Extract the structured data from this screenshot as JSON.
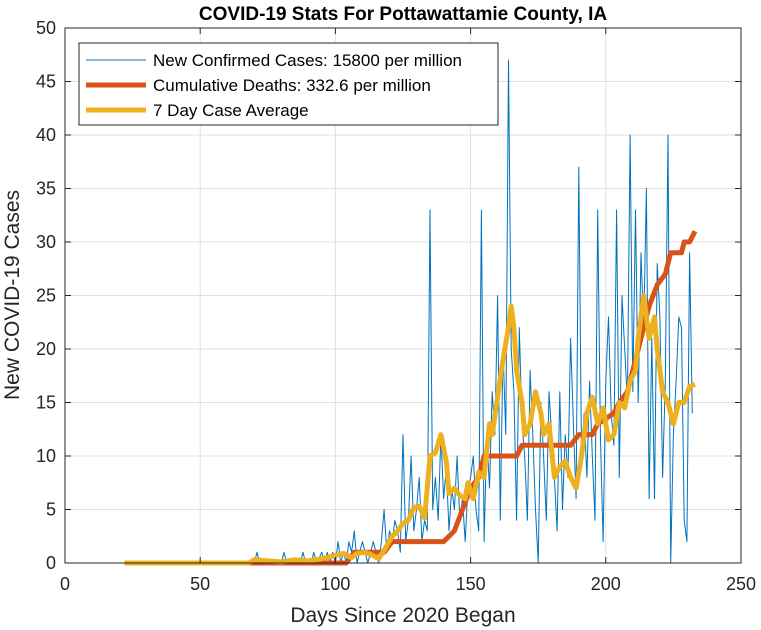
{
  "chart_data": {
    "type": "line",
    "title": "COVID-19 Stats For Pottawattamie County, IA",
    "xlabel": "Days Since 2020 Began",
    "ylabel": "New COVID-19 Cases",
    "xlim": [
      0,
      250
    ],
    "ylim": [
      0,
      50
    ],
    "xticks": [
      0,
      50,
      100,
      150,
      200,
      250
    ],
    "yticks": [
      0,
      5,
      10,
      15,
      20,
      25,
      30,
      35,
      40,
      45,
      50
    ],
    "grid": true,
    "legend_position": "top-left",
    "series": [
      {
        "name": "New Confirmed Cases: 15800 per million",
        "color": "#0072BD",
        "width": "thin",
        "points": [
          [
            22,
            0
          ],
          [
            70,
            0
          ],
          [
            71,
            1
          ],
          [
            72,
            0
          ],
          [
            80,
            0
          ],
          [
            81,
            1
          ],
          [
            82,
            0
          ],
          [
            87,
            0
          ],
          [
            88,
            1
          ],
          [
            89,
            0
          ],
          [
            91,
            0
          ],
          [
            92,
            1
          ],
          [
            93,
            0
          ],
          [
            95,
            1
          ],
          [
            96,
            0
          ],
          [
            97,
            1
          ],
          [
            98,
            0
          ],
          [
            99,
            1
          ],
          [
            100,
            0
          ],
          [
            101,
            2
          ],
          [
            102,
            0
          ],
          [
            103,
            1
          ],
          [
            104,
            0
          ],
          [
            105,
            2
          ],
          [
            106,
            1
          ],
          [
            107,
            3
          ],
          [
            108,
            0
          ],
          [
            109,
            1
          ],
          [
            110,
            2
          ],
          [
            111,
            1
          ],
          [
            112,
            0
          ],
          [
            113,
            1
          ],
          [
            114,
            2
          ],
          [
            115,
            1
          ],
          [
            116,
            0
          ],
          [
            117,
            2
          ],
          [
            118,
            5
          ],
          [
            119,
            1
          ],
          [
            120,
            3
          ],
          [
            121,
            2
          ],
          [
            122,
            4
          ],
          [
            123,
            3
          ],
          [
            124,
            1
          ],
          [
            125,
            12
          ],
          [
            126,
            2
          ],
          [
            127,
            4
          ],
          [
            128,
            10
          ],
          [
            129,
            3
          ],
          [
            130,
            5
          ],
          [
            131,
            8
          ],
          [
            132,
            2
          ],
          [
            133,
            4
          ],
          [
            134,
            3
          ],
          [
            135,
            33
          ],
          [
            136,
            5
          ],
          [
            137,
            8
          ],
          [
            138,
            4
          ],
          [
            139,
            12
          ],
          [
            140,
            6
          ],
          [
            141,
            9
          ],
          [
            142,
            3
          ],
          [
            143,
            7
          ],
          [
            144,
            5
          ],
          [
            145,
            10
          ],
          [
            146,
            4
          ],
          [
            147,
            6
          ],
          [
            148,
            2
          ],
          [
            149,
            7
          ],
          [
            150,
            8
          ],
          [
            151,
            10
          ],
          [
            152,
            5
          ],
          [
            153,
            3
          ],
          [
            154,
            33
          ],
          [
            155,
            2
          ],
          [
            156,
            12
          ],
          [
            157,
            7
          ],
          [
            158,
            16
          ],
          [
            159,
            12
          ],
          [
            160,
            25
          ],
          [
            161,
            4
          ],
          [
            162,
            20
          ],
          [
            163,
            12
          ],
          [
            164,
            47
          ],
          [
            165,
            20
          ],
          [
            166,
            16
          ],
          [
            167,
            4
          ],
          [
            168,
            22
          ],
          [
            169,
            13
          ],
          [
            170,
            10
          ],
          [
            171,
            4
          ],
          [
            172,
            18
          ],
          [
            173,
            12
          ],
          [
            174,
            5
          ],
          [
            175,
            0
          ],
          [
            176,
            15
          ],
          [
            177,
            10
          ],
          [
            178,
            4
          ],
          [
            179,
            16
          ],
          [
            180,
            12
          ],
          [
            181,
            8
          ],
          [
            182,
            3
          ],
          [
            183,
            16
          ],
          [
            184,
            5
          ],
          [
            185,
            12
          ],
          [
            186,
            8
          ],
          [
            187,
            21
          ],
          [
            188,
            13
          ],
          [
            189,
            6
          ],
          [
            190,
            37
          ],
          [
            191,
            10
          ],
          [
            192,
            14
          ],
          [
            193,
            8
          ],
          [
            194,
            17
          ],
          [
            195,
            10
          ],
          [
            196,
            4
          ],
          [
            197,
            33
          ],
          [
            198,
            12
          ],
          [
            199,
            2
          ],
          [
            200,
            17
          ],
          [
            201,
            23
          ],
          [
            202,
            14
          ],
          [
            203,
            11
          ],
          [
            204,
            33
          ],
          [
            205,
            8
          ],
          [
            206,
            25
          ],
          [
            207,
            20
          ],
          [
            208,
            15
          ],
          [
            209,
            40
          ],
          [
            210,
            16
          ],
          [
            211,
            33
          ],
          [
            212,
            15
          ],
          [
            213,
            29
          ],
          [
            214,
            22
          ],
          [
            215,
            35
          ],
          [
            216,
            6
          ],
          [
            217,
            21
          ],
          [
            218,
            6
          ],
          [
            219,
            28
          ],
          [
            220,
            23
          ],
          [
            221,
            8
          ],
          [
            222,
            17
          ],
          [
            223,
            40
          ],
          [
            224,
            0
          ],
          [
            225,
            12
          ],
          [
            226,
            17
          ],
          [
            227,
            23
          ],
          [
            228,
            22
          ],
          [
            229,
            4
          ],
          [
            230,
            2
          ],
          [
            231,
            29
          ],
          [
            232,
            14
          ]
        ]
      },
      {
        "name": "Cumulative Deaths: 332.6 per million",
        "color": "#D95319",
        "width": "thick",
        "points": [
          [
            22,
            0
          ],
          [
            104,
            0
          ],
          [
            107,
            1
          ],
          [
            118,
            1
          ],
          [
            121,
            2
          ],
          [
            140,
            2
          ],
          [
            144,
            3
          ],
          [
            147,
            5
          ],
          [
            150,
            7
          ],
          [
            153,
            8
          ],
          [
            155,
            10
          ],
          [
            167,
            10
          ],
          [
            169,
            11
          ],
          [
            187,
            11
          ],
          [
            190,
            12
          ],
          [
            195,
            12
          ],
          [
            197,
            13
          ],
          [
            203,
            14
          ],
          [
            205,
            15
          ],
          [
            208,
            16
          ],
          [
            210,
            18
          ],
          [
            213,
            21
          ],
          [
            216,
            24
          ],
          [
            219,
            26
          ],
          [
            222,
            27
          ],
          [
            224,
            29
          ],
          [
            228,
            29
          ],
          [
            229,
            30
          ],
          [
            231,
            30
          ],
          [
            233,
            31
          ]
        ]
      },
      {
        "name": "7 Day Case Average",
        "color": "#EDB120",
        "width": "thick",
        "points": [
          [
            22,
            0
          ],
          [
            68,
            0
          ],
          [
            70,
            0.3
          ],
          [
            75,
            0.2
          ],
          [
            80,
            0.1
          ],
          [
            85,
            0.3
          ],
          [
            90,
            0.2
          ],
          [
            95,
            0.4
          ],
          [
            100,
            0.7
          ],
          [
            103,
            0.9
          ],
          [
            106,
            0.5
          ],
          [
            108,
            0.9
          ],
          [
            111,
            1.0
          ],
          [
            113,
            0.8
          ],
          [
            116,
            0.4
          ],
          [
            118,
            1.2
          ],
          [
            121,
            2.5
          ],
          [
            123,
            3.0
          ],
          [
            125,
            3.7
          ],
          [
            127,
            4.0
          ],
          [
            129,
            5.2
          ],
          [
            131,
            5.3
          ],
          [
            133,
            4.2
          ],
          [
            135,
            10.0
          ],
          [
            137,
            10.3
          ],
          [
            139,
            12.0
          ],
          [
            141,
            9.5
          ],
          [
            142,
            6.5
          ],
          [
            144,
            7.0
          ],
          [
            146,
            6.3
          ],
          [
            148,
            6.0
          ],
          [
            149,
            7.5
          ],
          [
            151,
            6.0
          ],
          [
            153,
            8.5
          ],
          [
            155,
            8.0
          ],
          [
            157,
            13.0
          ],
          [
            158,
            12.0
          ],
          [
            160,
            15.5
          ],
          [
            162,
            19.0
          ],
          [
            164,
            22.0
          ],
          [
            165,
            24.0
          ],
          [
            166,
            22.0
          ],
          [
            167,
            18.0
          ],
          [
            169,
            15.0
          ],
          [
            170,
            12.0
          ],
          [
            172,
            13.0
          ],
          [
            174,
            16.0
          ],
          [
            176,
            14.0
          ],
          [
            177,
            12.0
          ],
          [
            179,
            13.0
          ],
          [
            181,
            8.0
          ],
          [
            183,
            9.0
          ],
          [
            185,
            9.5
          ],
          [
            187,
            8.0
          ],
          [
            189,
            7.0
          ],
          [
            191,
            10.0
          ],
          [
            193,
            14.0
          ],
          [
            195,
            15.5
          ],
          [
            197,
            13.0
          ],
          [
            199,
            14.5
          ],
          [
            201,
            11.5
          ],
          [
            203,
            12.0
          ],
          [
            205,
            15.0
          ],
          [
            207,
            14.5
          ],
          [
            209,
            17.0
          ],
          [
            211,
            18.0
          ],
          [
            212,
            21.0
          ],
          [
            214,
            25.0
          ],
          [
            216,
            21.0
          ],
          [
            218,
            23.0
          ],
          [
            219,
            20.0
          ],
          [
            221,
            16.0
          ],
          [
            223,
            15.0
          ],
          [
            225,
            13.0
          ],
          [
            227,
            15.0
          ],
          [
            229,
            15.0
          ],
          [
            231,
            16.5
          ],
          [
            233,
            16.7
          ]
        ]
      }
    ]
  }
}
